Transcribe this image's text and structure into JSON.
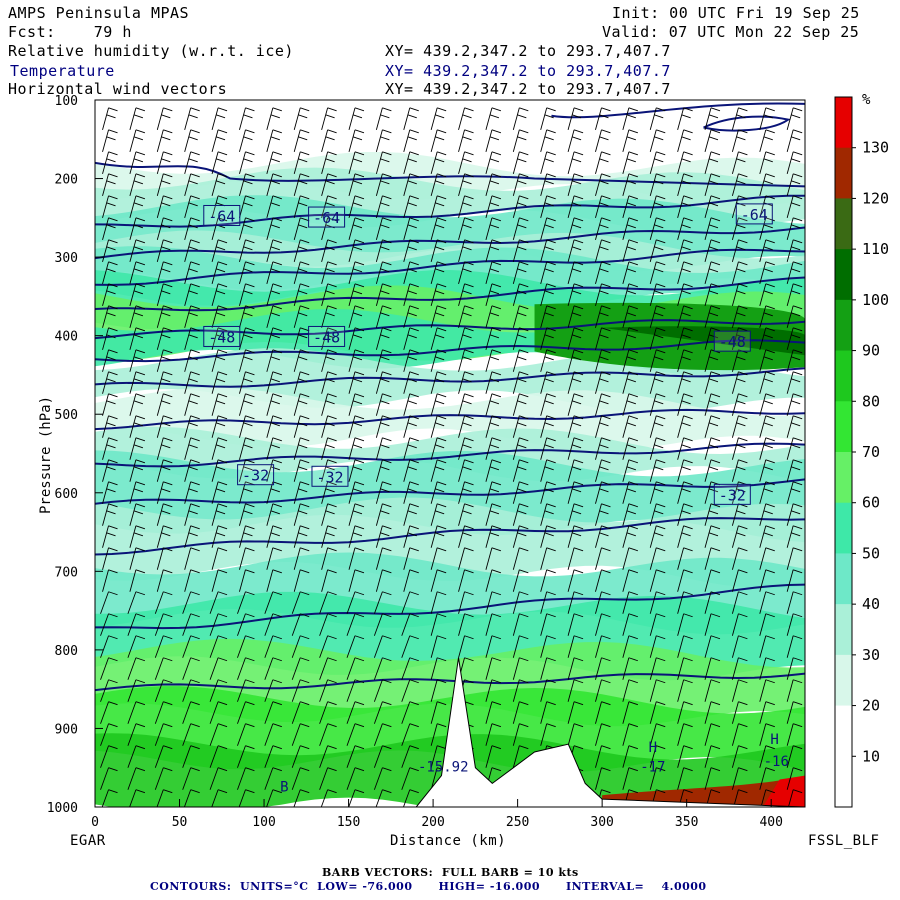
{
  "header": {
    "model": "AMPS Peninsula MPAS",
    "fcst": "Fcst:    79 h",
    "init": "Init: 00 UTC Fri 19 Sep 25",
    "valid": "Valid: 07 UTC Mon 22 Sep 25",
    "fields": [
      {
        "label": "Relative humidity (w.r.t. ice)",
        "xy": "XY= 439.2,347.2 to 293.7,407.7"
      },
      {
        "label": "Temperature",
        "xy": "XY= 439.2,347.2 to 293.7,407.7"
      },
      {
        "label": "Horizontal wind vectors",
        "xy": "XY= 439.2,347.2 to 293.7,407.7"
      }
    ]
  },
  "footer": {
    "barb": "BARB VECTORS:  FULL BARB = 10 kts",
    "contours": "CONTOURS:  UNITS=°C  LOW= -76.000      HIGH= -16.000      INTERVAL=    4.0000",
    "left_endpoint": "EGAR",
    "right_endpoint": "FSSL_BLF"
  },
  "colors": {
    "rh_levels": [
      "#ffffff",
      "#ffffff",
      "#d8f7ea",
      "#aaf0d8",
      "#6ee8c8",
      "#3ee8a8",
      "#66f066",
      "#33e633",
      "#1ec81e",
      "#14a014",
      "#006e00",
      "#3a6a14",
      "#a02800",
      "#e60000"
    ],
    "temperature_contour": "#0a1478",
    "barb": "#000000"
  },
  "chart_data": {
    "type": "cross-section",
    "xlabel": "Distance (km)",
    "ylabel": "Pressure (hPa)",
    "xlim": [
      0,
      420
    ],
    "ylim": [
      1000,
      100
    ],
    "x_ticks": [
      0,
      50,
      100,
      150,
      200,
      250,
      300,
      350,
      400
    ],
    "y_ticks": [
      100,
      200,
      300,
      400,
      500,
      600,
      700,
      800,
      900,
      1000
    ],
    "colorbar": {
      "unit": "%",
      "ticks": [
        10,
        20,
        30,
        40,
        50,
        60,
        70,
        80,
        90,
        100,
        110,
        120,
        130
      ]
    },
    "temperature_contours": [
      {
        "value": -64,
        "p_left": 262,
        "p_right": 225
      },
      {
        "value": -60,
        "p_left": 300,
        "p_right": 262
      },
      {
        "value": -56,
        "p_left": 333,
        "p_right": 290
      },
      {
        "value": -52,
        "p_left": 370,
        "p_right": 330
      },
      {
        "value": -48,
        "p_left": 400,
        "p_right": 380
      },
      {
        "value": -44,
        "p_left": 430,
        "p_right": 408
      },
      {
        "value": -40,
        "p_left": 465,
        "p_right": 445
      },
      {
        "value": -36,
        "p_left": 515,
        "p_right": 495
      },
      {
        "value": -32,
        "p_left": 565,
        "p_right": 540
      },
      {
        "value": -28,
        "p_left": 615,
        "p_right": 585
      },
      {
        "value": -24,
        "p_left": 675,
        "p_right": 630
      },
      {
        "value": -20,
        "p_left": 775,
        "p_right": 720
      },
      {
        "value": -16,
        "p_left": 850,
        "p_right": 830
      }
    ],
    "contour_labels": [
      {
        "text": "-64",
        "x": 75,
        "p": 247
      },
      {
        "text": "-64",
        "x": 137,
        "p": 249
      },
      {
        "text": "-64",
        "x": 390,
        "p": 245
      },
      {
        "text": "-48",
        "x": 75,
        "p": 401
      },
      {
        "text": "-48",
        "x": 137,
        "p": 401
      },
      {
        "text": "-48",
        "x": 377,
        "p": 407
      },
      {
        "text": "-32",
        "x": 95,
        "p": 577
      },
      {
        "text": "-32",
        "x": 139,
        "p": 579
      },
      {
        "text": "-32",
        "x": 377,
        "p": 602
      }
    ],
    "extrema_labels": [
      {
        "text": "H",
        "x": 330,
        "p": 930
      },
      {
        "text": "-17",
        "x": 330,
        "p": 955
      },
      {
        "text": "H",
        "x": 402,
        "p": 920
      },
      {
        "text": "-16",
        "x": 403,
        "p": 948
      },
      {
        "text": "B",
        "x": 112,
        "p": 980
      },
      {
        "text": "-15.92",
        "x": 206,
        "p": 955
      }
    ],
    "terrain": [
      [
        0,
        1000
      ],
      [
        190,
        1000
      ],
      [
        205,
        960
      ],
      [
        215,
        810
      ],
      [
        225,
        950
      ],
      [
        235,
        970
      ],
      [
        260,
        930
      ],
      [
        280,
        920
      ],
      [
        290,
        970
      ],
      [
        300,
        990
      ],
      [
        420,
        1000
      ]
    ]
  }
}
